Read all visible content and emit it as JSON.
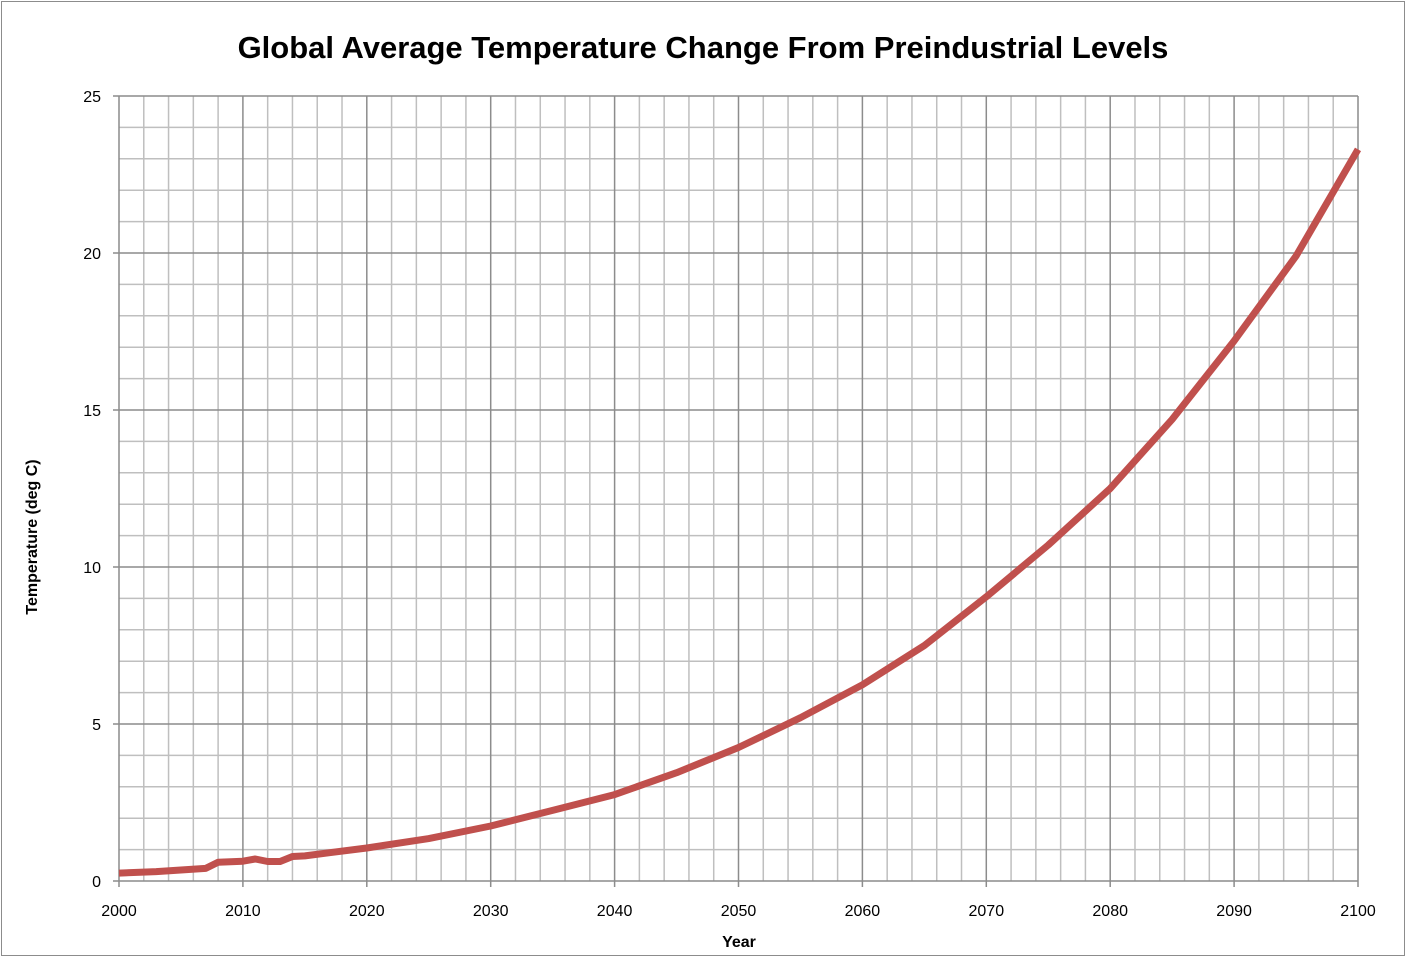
{
  "chart_data": {
    "type": "line",
    "title": "Global Average Temperature Change From  Preindustrial Levels",
    "xlabel": "Year",
    "ylabel": "Temperature (deg C)",
    "xlim": [
      2000,
      2100
    ],
    "ylim": [
      0,
      25
    ],
    "x_ticks": [
      2000,
      2010,
      2020,
      2030,
      2040,
      2050,
      2060,
      2070,
      2080,
      2090,
      2100
    ],
    "y_ticks": [
      0,
      5,
      10,
      15,
      20,
      25
    ],
    "grid": {
      "major": true,
      "minor": true,
      "x_minor_step": 2,
      "y_minor_step": 1
    },
    "legend": "none",
    "series": [
      {
        "color": "#c0504d",
        "x": [
          2000,
          2003,
          2005,
          2007,
          2008,
          2010,
          2011,
          2012,
          2013,
          2014,
          2015,
          2017,
          2020,
          2025,
          2030,
          2035,
          2040,
          2045,
          2050,
          2055,
          2060,
          2065,
          2070,
          2075,
          2080,
          2085,
          2090,
          2095,
          2100
        ],
        "y": [
          0.25,
          0.3,
          0.35,
          0.4,
          0.6,
          0.63,
          0.7,
          0.62,
          0.62,
          0.78,
          0.8,
          0.9,
          1.05,
          1.35,
          1.75,
          2.25,
          2.75,
          3.45,
          4.25,
          5.2,
          6.25,
          7.5,
          9.05,
          10.7,
          12.5,
          14.7,
          17.2,
          19.9,
          23.3
        ]
      }
    ]
  }
}
